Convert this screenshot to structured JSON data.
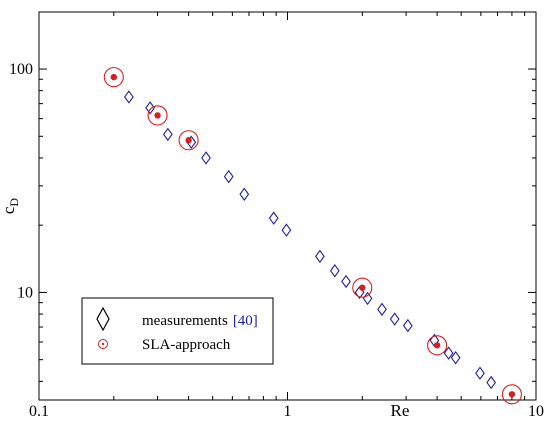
{
  "chart_data": {
    "type": "scatter",
    "title": "",
    "xlabel": "Re",
    "ylabel": "c",
    "ylabel_subscript": "D",
    "x_scale": "log",
    "y_scale": "log",
    "xlim": [
      0.1,
      10
    ],
    "ylim": [
      3.3,
      180
    ],
    "x_ticks": [
      0.1,
      1,
      10
    ],
    "x_tick_labels": [
      "0.1",
      "1",
      "10"
    ],
    "y_ticks": [
      10,
      100
    ],
    "y_tick_labels": [
      "10",
      "100"
    ],
    "grid": false,
    "legend_position": "bottom-left",
    "series": [
      {
        "name": "measurements",
        "name_ref": "[40]",
        "marker": "diamond",
        "color": "#1f1f99",
        "points": [
          {
            "x": 0.23,
            "y": 75
          },
          {
            "x": 0.28,
            "y": 67
          },
          {
            "x": 0.33,
            "y": 51
          },
          {
            "x": 0.41,
            "y": 47
          },
          {
            "x": 0.47,
            "y": 40
          },
          {
            "x": 0.58,
            "y": 33
          },
          {
            "x": 0.67,
            "y": 27.5
          },
          {
            "x": 0.88,
            "y": 21.5
          },
          {
            "x": 0.99,
            "y": 19
          },
          {
            "x": 1.35,
            "y": 14.5
          },
          {
            "x": 1.55,
            "y": 12.5
          },
          {
            "x": 1.72,
            "y": 11.2
          },
          {
            "x": 1.95,
            "y": 10
          },
          {
            "x": 2.1,
            "y": 9.4
          },
          {
            "x": 2.4,
            "y": 8.4
          },
          {
            "x": 2.7,
            "y": 7.6
          },
          {
            "x": 3.05,
            "y": 7.1
          },
          {
            "x": 3.9,
            "y": 6.1
          },
          {
            "x": 4.45,
            "y": 5.35
          },
          {
            "x": 4.75,
            "y": 5.1
          },
          {
            "x": 5.95,
            "y": 4.35
          },
          {
            "x": 6.6,
            "y": 3.95
          }
        ]
      },
      {
        "name": "SLA-approach",
        "marker": "dotted-circle",
        "color": "#d42020",
        "points": [
          {
            "x": 0.2,
            "y": 92
          },
          {
            "x": 0.3,
            "y": 62
          },
          {
            "x": 0.4,
            "y": 48
          },
          {
            "x": 2.0,
            "y": 10.5
          },
          {
            "x": 4.0,
            "y": 5.8
          },
          {
            "x": 8.0,
            "y": 3.5
          }
        ]
      }
    ]
  }
}
